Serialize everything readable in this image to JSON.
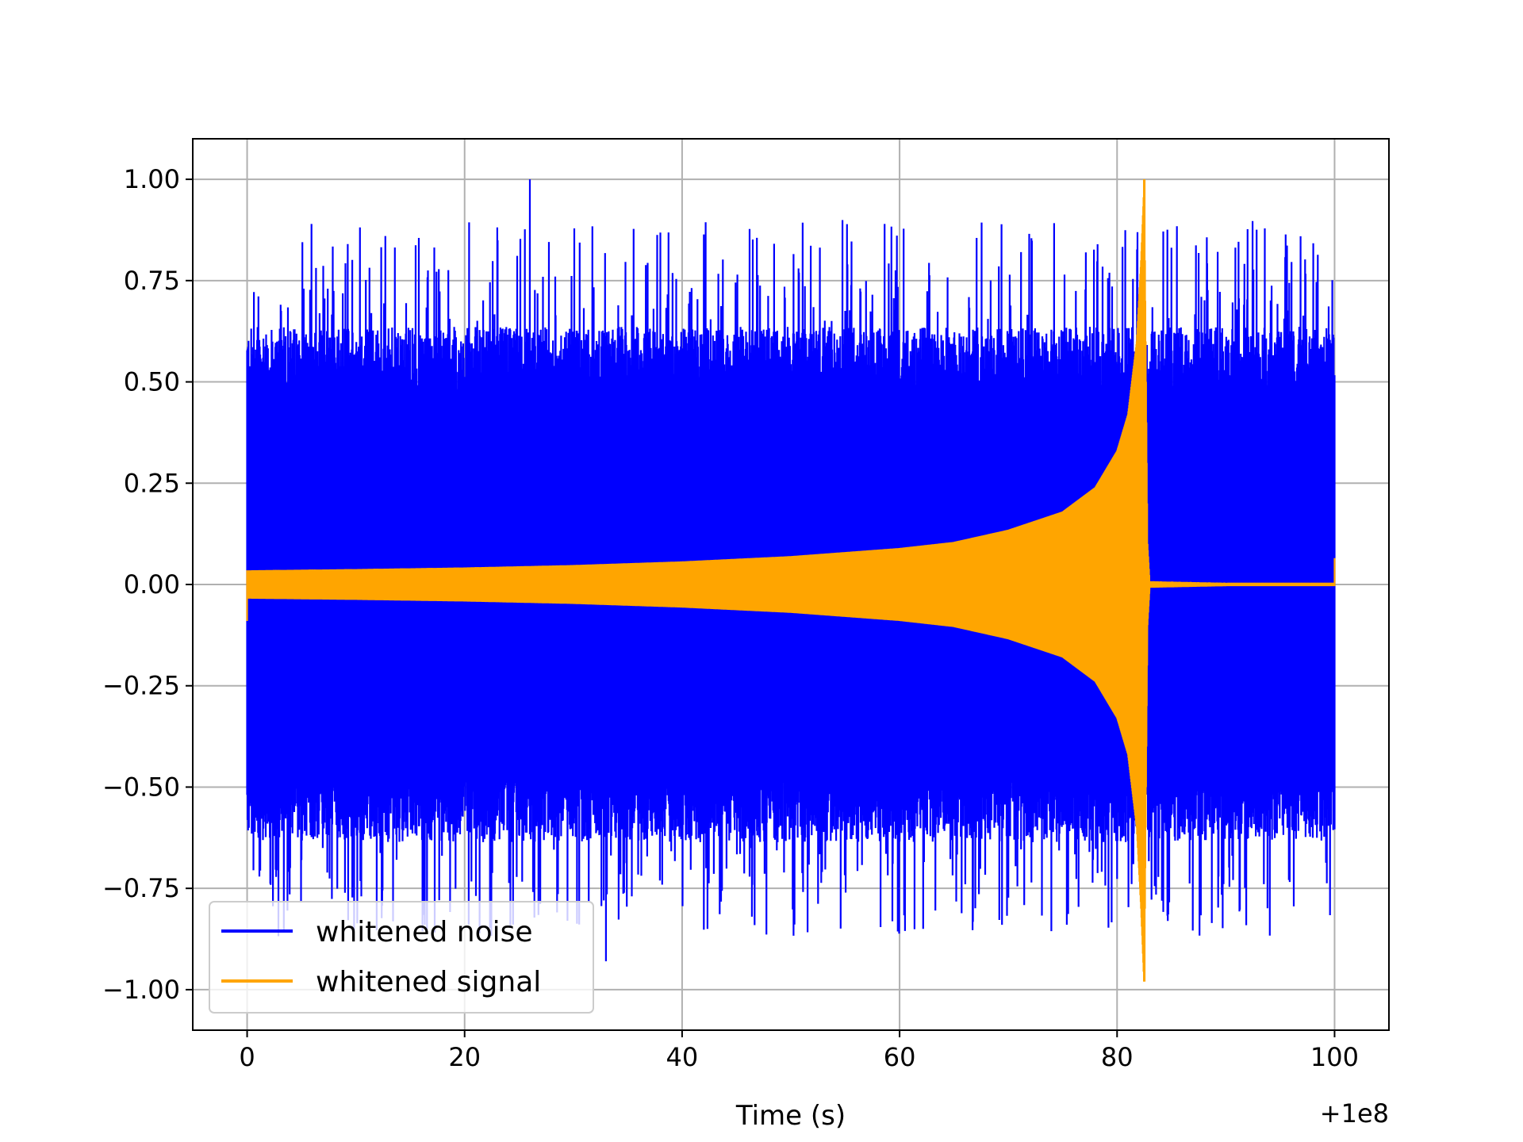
{
  "chart_data": {
    "type": "line",
    "title": "",
    "xlabel": "Time (s)",
    "ylabel": "",
    "x_offset_label": "+1e8",
    "xlim": [
      -5,
      105
    ],
    "ylim": [
      -1.1,
      1.1
    ],
    "xticks": [
      0,
      20,
      40,
      60,
      80,
      100
    ],
    "xtick_labels": [
      "0",
      "20",
      "40",
      "60",
      "80",
      "100"
    ],
    "yticks": [
      1.0,
      0.75,
      0.5,
      0.25,
      0.0,
      -0.25,
      -0.5,
      -0.75,
      -1.0
    ],
    "ytick_labels": [
      "1.00",
      "0.75",
      "0.50",
      "0.25",
      "0.00",
      "−0.25",
      "−0.50",
      "−0.75",
      "−1.00"
    ],
    "grid": true,
    "legend_position": "lower-left",
    "series": [
      {
        "name": "whitened noise",
        "color": "#0000ff",
        "x_range": [
          0,
          100
        ],
        "typical_envelope": [
          -0.6,
          0.6
        ],
        "peak_max": 1.0,
        "peak_max_x": 26,
        "peak_min": -0.93
      },
      {
        "name": "whitened signal",
        "color": "#ffa500",
        "x_range": [
          0,
          100
        ],
        "envelope": {
          "x": [
            0,
            10,
            20,
            30,
            40,
            50,
            60,
            65,
            70,
            75,
            78,
            80,
            81,
            81.8,
            82.2,
            82.5,
            82.8,
            83,
            90,
            100
          ],
          "amplitude": [
            0.035,
            0.038,
            0.042,
            0.048,
            0.057,
            0.07,
            0.09,
            0.105,
            0.135,
            0.18,
            0.24,
            0.33,
            0.42,
            0.6,
            0.8,
            1.0,
            0.1,
            0.008,
            0.004,
            0.004
          ]
        },
        "peak_max": 1.0,
        "peak_max_x": 82.5,
        "peak_min": -0.98,
        "end_jump": 0.065
      }
    ]
  }
}
